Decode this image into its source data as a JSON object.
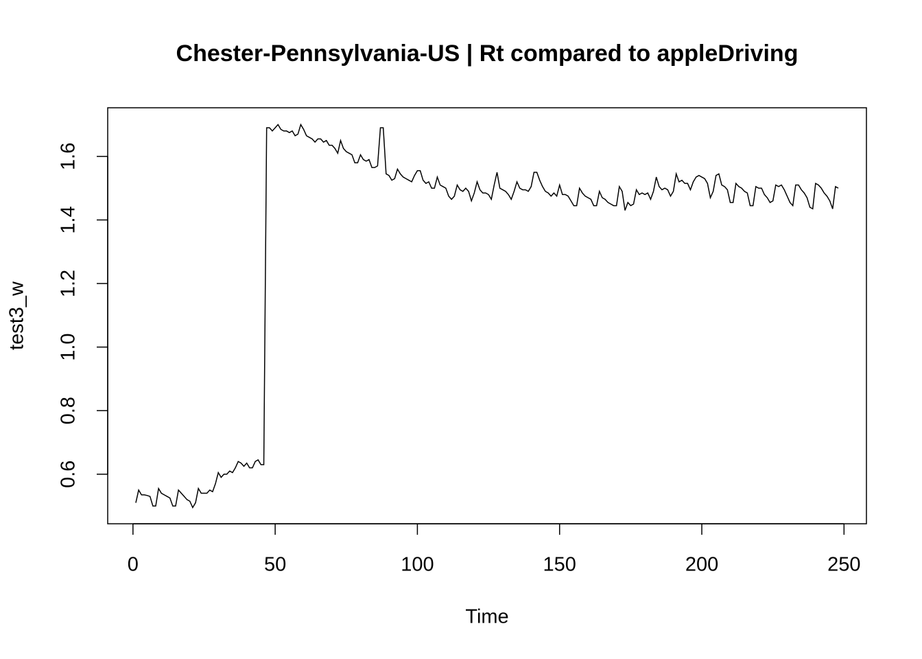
{
  "chart_data": {
    "type": "line",
    "title": "Chester-Pennsylvania-US | Rt compared to appleDriving",
    "x_label": "Time",
    "y_label": "test3_w",
    "x": [
      1,
      2,
      3,
      4,
      5,
      6,
      7,
      8,
      9,
      10,
      11,
      12,
      13,
      14,
      15,
      16,
      17,
      18,
      19,
      20,
      21,
      22,
      23,
      24,
      25,
      26,
      27,
      28,
      29,
      30,
      31,
      32,
      33,
      34,
      35,
      36,
      37,
      38,
      39,
      40,
      41,
      42,
      43,
      44,
      45,
      46,
      47,
      48,
      49,
      50,
      51,
      52,
      53,
      54,
      55,
      56,
      57,
      58,
      59,
      60,
      61,
      62,
      63,
      64,
      65,
      66,
      67,
      68,
      69,
      70,
      71,
      72,
      73,
      74,
      75,
      76,
      77,
      78,
      79,
      80,
      81,
      82,
      83,
      84,
      85,
      86,
      87,
      88,
      89,
      90,
      91,
      92,
      93,
      94,
      95,
      96,
      97,
      98,
      99,
      100,
      101,
      102,
      103,
      104,
      105,
      106,
      107,
      108,
      109,
      110,
      111,
      112,
      113,
      114,
      115,
      116,
      117,
      118,
      119,
      120,
      121,
      122,
      123,
      124,
      125,
      126,
      127,
      128,
      129,
      130,
      131,
      132,
      133,
      134,
      135,
      136,
      137,
      138,
      139,
      140,
      141,
      142,
      143,
      144,
      145,
      146,
      147,
      148,
      149,
      150,
      151,
      152,
      153,
      154,
      155,
      156,
      157,
      158,
      159,
      160,
      161,
      162,
      163,
      164,
      165,
      166,
      167,
      168,
      169,
      170,
      171,
      172,
      173,
      174,
      175,
      176,
      177,
      178,
      179,
      180,
      181,
      182,
      183,
      184,
      185,
      186,
      187,
      188,
      189,
      190,
      191,
      192,
      193,
      194,
      195,
      196,
      197,
      198,
      199,
      200,
      201,
      202,
      203,
      204,
      205,
      206,
      207,
      208,
      209,
      210,
      211,
      212,
      213,
      214,
      215,
      216,
      217,
      218,
      219,
      220,
      221,
      222,
      223,
      224,
      225,
      226,
      227,
      228,
      229,
      230,
      231,
      232,
      233,
      234,
      235,
      236,
      237,
      238,
      239,
      240,
      241,
      242,
      243,
      244,
      245,
      246,
      247,
      248
    ],
    "series": [
      {
        "name": "test3_w",
        "color": "#000000",
        "values": [
          0.51,
          0.55,
          0.535,
          0.535,
          0.533,
          0.53,
          0.5,
          0.5,
          0.555,
          0.54,
          0.535,
          0.53,
          0.525,
          0.5,
          0.5,
          0.55,
          0.54,
          0.53,
          0.52,
          0.515,
          0.495,
          0.51,
          0.555,
          0.54,
          0.54,
          0.54,
          0.55,
          0.545,
          0.57,
          0.605,
          0.59,
          0.6,
          0.6,
          0.61,
          0.605,
          0.62,
          0.64,
          0.635,
          0.625,
          0.635,
          0.62,
          0.62,
          0.64,
          0.645,
          0.63,
          0.63,
          1.69,
          1.69,
          1.68,
          1.69,
          1.7,
          1.685,
          1.68,
          1.68,
          1.675,
          1.68,
          1.665,
          1.67,
          1.7,
          1.685,
          1.665,
          1.66,
          1.655,
          1.645,
          1.655,
          1.655,
          1.645,
          1.65,
          1.635,
          1.635,
          1.625,
          1.61,
          1.65,
          1.625,
          1.615,
          1.61,
          1.605,
          1.58,
          1.58,
          1.605,
          1.59,
          1.585,
          1.59,
          1.565,
          1.565,
          1.57,
          1.69,
          1.69,
          1.545,
          1.54,
          1.525,
          1.53,
          1.56,
          1.545,
          1.535,
          1.53,
          1.525,
          1.52,
          1.54,
          1.555,
          1.555,
          1.525,
          1.515,
          1.52,
          1.5,
          1.5,
          1.535,
          1.51,
          1.505,
          1.5,
          1.475,
          1.465,
          1.475,
          1.51,
          1.495,
          1.49,
          1.5,
          1.49,
          1.46,
          1.485,
          1.52,
          1.495,
          1.485,
          1.485,
          1.48,
          1.465,
          1.51,
          1.55,
          1.5,
          1.495,
          1.49,
          1.48,
          1.465,
          1.49,
          1.52,
          1.5,
          1.495,
          1.495,
          1.49,
          1.505,
          1.55,
          1.55,
          1.525,
          1.505,
          1.49,
          1.485,
          1.475,
          1.485,
          1.475,
          1.51,
          1.48,
          1.48,
          1.475,
          1.46,
          1.445,
          1.445,
          1.5,
          1.485,
          1.475,
          1.47,
          1.465,
          1.445,
          1.445,
          1.49,
          1.47,
          1.465,
          1.455,
          1.45,
          1.445,
          1.445,
          1.505,
          1.49,
          1.43,
          1.455,
          1.445,
          1.45,
          1.495,
          1.48,
          1.485,
          1.48,
          1.485,
          1.465,
          1.49,
          1.535,
          1.505,
          1.495,
          1.5,
          1.495,
          1.475,
          1.49,
          1.545,
          1.52,
          1.525,
          1.515,
          1.515,
          1.495,
          1.52,
          1.535,
          1.54,
          1.535,
          1.53,
          1.515,
          1.47,
          1.49,
          1.54,
          1.545,
          1.51,
          1.505,
          1.495,
          1.455,
          1.455,
          1.515,
          1.505,
          1.5,
          1.49,
          1.485,
          1.445,
          1.445,
          1.505,
          1.5,
          1.5,
          1.48,
          1.47,
          1.455,
          1.46,
          1.51,
          1.505,
          1.51,
          1.495,
          1.475,
          1.455,
          1.445,
          1.51,
          1.51,
          1.495,
          1.485,
          1.47,
          1.44,
          1.435,
          1.515,
          1.51,
          1.5,
          1.485,
          1.475,
          1.46,
          1.435,
          1.505,
          1.5
        ]
      }
    ],
    "xlim": [
      -8.88,
      257.88
    ],
    "xticks": [
      0,
      50,
      100,
      150,
      200,
      250
    ],
    "ylim": [
      0.444,
      1.753
    ],
    "yticks": [
      0.6,
      0.8,
      {
        "value": 1,
        "label": "1.0"
      },
      1.2,
      1.4,
      1.6
    ]
  }
}
